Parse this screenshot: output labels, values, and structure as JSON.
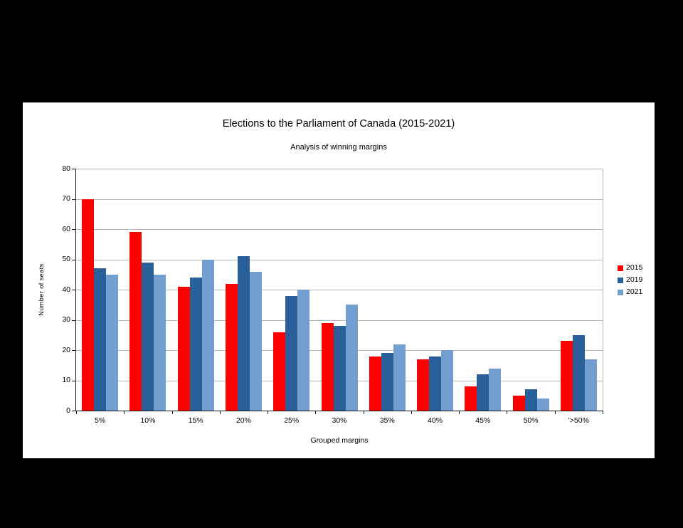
{
  "chart_data": {
    "type": "bar",
    "title": "Elections to the Parliament of Canada (2015-2021)",
    "subtitle": "Analysis of winning margins",
    "xlabel": "Grouped margins",
    "ylabel": "Number of seats",
    "categories": [
      "5%",
      "10%",
      "15%",
      "20%",
      "25%",
      "30%",
      "35%",
      "40%",
      "45%",
      "50%",
      "'>50%"
    ],
    "series": [
      {
        "name": "2015",
        "color": "#ff0000",
        "values": [
          70,
          59,
          41,
          42,
          26,
          29,
          18,
          17,
          8,
          5,
          23
        ]
      },
      {
        "name": "2019",
        "color": "#2a6099",
        "values": [
          47,
          49,
          44,
          51,
          38,
          28,
          19,
          18,
          12,
          7,
          25
        ]
      },
      {
        "name": "2021",
        "color": "#729fcf",
        "values": [
          45,
          45,
          50,
          46,
          40,
          35,
          22,
          20,
          14,
          4,
          17
        ]
      }
    ],
    "ylim": [
      0,
      80
    ],
    "yticks": [
      0,
      10,
      20,
      30,
      40,
      50,
      60,
      70,
      80
    ],
    "grid": "horizontal",
    "legend_position": "right"
  },
  "colors": {
    "page_background": "#000000",
    "chart_background": "#ffffff",
    "gridline": "#b3b3b3",
    "axis": "#1a1a1a",
    "text": "#000000"
  }
}
